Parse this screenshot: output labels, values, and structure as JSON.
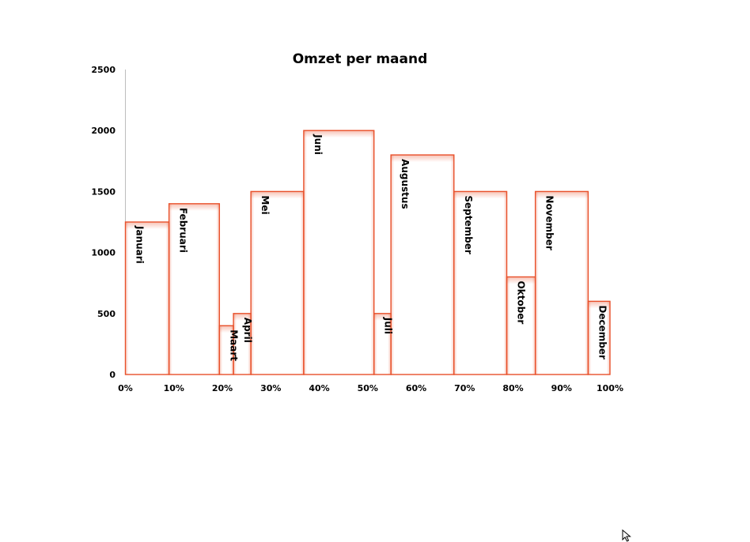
{
  "chart_data": {
    "type": "bar",
    "variant": "mekko / variable-width column",
    "title": "Omzet per maand",
    "xlabel": "",
    "ylabel": "",
    "ylim": [
      0,
      2500
    ],
    "yticks": [
      0,
      500,
      1000,
      1500,
      2000,
      2500
    ],
    "xlim": [
      0,
      100
    ],
    "xticks": [
      "0%",
      "10%",
      "20%",
      "30%",
      "40%",
      "50%",
      "60%",
      "70%",
      "80%",
      "90%",
      "100%"
    ],
    "categories": [
      "Januari",
      "Februari",
      "Maart",
      "April",
      "Mei",
      "Juni",
      "Juli",
      "Augustus",
      "September",
      "Oktober",
      "November",
      "December"
    ],
    "values": [
      1250,
      1400,
      400,
      500,
      1500,
      2000,
      500,
      1800,
      1500,
      800,
      1500,
      600
    ],
    "x_start_pct": [
      0,
      9,
      19.4,
      22.3,
      25.9,
      36.8,
      51.3,
      54.8,
      67.8,
      78.7,
      84.6,
      95.5
    ],
    "x_end_pct": [
      9,
      19.4,
      22.3,
      25.9,
      36.8,
      51.3,
      54.8,
      67.8,
      78.7,
      84.6,
      95.5,
      100
    ],
    "bar_color": "#e8502a",
    "grid": false,
    "legend": "none"
  }
}
